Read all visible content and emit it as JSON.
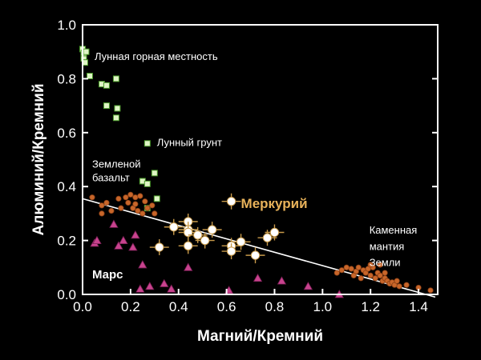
{
  "chart_data": {
    "type": "scatter",
    "title": "",
    "xlabel": "Магний/Кремний",
    "ylabel": "Алюминий/Кремний",
    "xlim": [
      0,
      1.48
    ],
    "ylim": [
      0,
      1.0
    ],
    "xticks": [
      "0.0",
      "0.2",
      "0.4",
      "0.6",
      "0.8",
      "1.0",
      "1.2",
      "1.4"
    ],
    "xtick_values": [
      0,
      0.2,
      0.4,
      0.6,
      0.8,
      1.0,
      1.2,
      1.4
    ],
    "yticks": [
      "0.0",
      "0.2",
      "0.4",
      "0.6",
      "0.8",
      "1.0"
    ],
    "ytick_values": [
      0,
      0.2,
      0.4,
      0.6,
      0.8,
      1.0
    ],
    "grid": false,
    "trend_line": {
      "x": [
        0.0,
        1.47
      ],
      "y": [
        0.355,
        -0.01
      ],
      "color": "#ffffff"
    },
    "annotations": [
      {
        "text": "Лунная горная местность",
        "x": 0.05,
        "y": 0.87,
        "style": "annot"
      },
      {
        "text": "Лунный грунт",
        "x": 0.31,
        "y": 0.55,
        "style": "annot"
      },
      {
        "text": "Земленой",
        "x": 0.04,
        "y": 0.47,
        "style": "annot"
      },
      {
        "text": "базальт",
        "x": 0.04,
        "y": 0.42,
        "style": "annot"
      },
      {
        "text": "Меркурий",
        "x": 0.66,
        "y": 0.32,
        "style": "annot-mercury"
      },
      {
        "text": "Марс",
        "x": 0.04,
        "y": 0.06,
        "style": "annot-bold"
      },
      {
        "text": "Каменная",
        "x": 1.195,
        "y": 0.225,
        "style": "annot"
      },
      {
        "text": "мантия",
        "x": 1.195,
        "y": 0.165,
        "style": "annot"
      },
      {
        "text": "Земли",
        "x": 1.195,
        "y": 0.105,
        "style": "annot"
      }
    ],
    "series": [
      {
        "marker": "square",
        "color": "#dff5c5",
        "edge": "#4a9a2a",
        "points": [
          [
            0.0,
            0.91
          ],
          [
            0.005,
            0.875
          ],
          [
            0.01,
            0.86
          ],
          [
            0.005,
            0.895
          ],
          [
            0.015,
            0.9
          ],
          [
            0.03,
            0.81
          ],
          [
            0.08,
            0.78
          ],
          [
            0.1,
            0.775
          ],
          [
            0.14,
            0.8
          ],
          [
            0.1,
            0.7
          ],
          [
            0.145,
            0.69
          ],
          [
            0.14,
            0.655
          ],
          [
            0.27,
            0.56
          ],
          [
            0.3,
            0.45
          ],
          [
            0.25,
            0.42
          ],
          [
            0.27,
            0.41
          ],
          [
            0.31,
            0.355
          ],
          [
            0.27,
            0.32
          ]
        ]
      },
      {
        "marker": "circle",
        "color": "#c8662a",
        "edge": "#8a3f15",
        "points": [
          [
            0.04,
            0.36
          ],
          [
            0.08,
            0.33
          ],
          [
            0.12,
            0.31
          ],
          [
            0.1,
            0.34
          ],
          [
            0.15,
            0.355
          ],
          [
            0.18,
            0.36
          ],
          [
            0.2,
            0.37
          ],
          [
            0.22,
            0.36
          ],
          [
            0.24,
            0.365
          ],
          [
            0.26,
            0.345
          ],
          [
            0.19,
            0.34
          ],
          [
            0.21,
            0.32
          ],
          [
            0.23,
            0.31
          ],
          [
            0.25,
            0.3
          ],
          [
            0.27,
            0.32
          ],
          [
            0.16,
            0.32
          ],
          [
            0.22,
            0.335
          ],
          [
            0.3,
            0.3
          ],
          [
            0.08,
            0.3
          ],
          [
            0.29,
            0.33
          ],
          [
            1.06,
            0.08
          ],
          [
            1.08,
            0.09
          ],
          [
            1.1,
            0.1
          ],
          [
            1.12,
            0.095
          ],
          [
            1.14,
            0.085
          ],
          [
            1.15,
            0.1
          ],
          [
            1.17,
            0.09
          ],
          [
            1.18,
            0.08
          ],
          [
            1.19,
            0.095
          ],
          [
            1.2,
            0.07
          ],
          [
            1.21,
            0.1
          ],
          [
            1.22,
            0.06
          ],
          [
            1.23,
            0.08
          ],
          [
            1.24,
            0.07
          ],
          [
            1.25,
            0.05
          ],
          [
            1.26,
            0.06
          ],
          [
            1.27,
            0.05
          ],
          [
            1.28,
            0.04
          ],
          [
            1.29,
            0.045
          ],
          [
            1.3,
            0.035
          ],
          [
            1.32,
            0.03
          ],
          [
            1.35,
            0.035
          ],
          [
            1.4,
            0.025
          ],
          [
            1.45,
            0.015
          ],
          [
            1.16,
            0.06
          ],
          [
            1.2,
            0.11
          ],
          [
            1.24,
            0.11
          ],
          [
            1.13,
            0.07
          ],
          [
            1.26,
            0.08
          ],
          [
            1.31,
            0.05
          ]
        ]
      },
      {
        "marker": "triangle",
        "color": "#c8438e",
        "edge": "#7a1f55",
        "points": [
          [
            0.05,
            0.19
          ],
          [
            0.06,
            0.2
          ],
          [
            0.13,
            0.26
          ],
          [
            0.15,
            0.18
          ],
          [
            0.17,
            0.2
          ],
          [
            0.21,
            0.175
          ],
          [
            0.22,
            0.22
          ],
          [
            0.25,
            0.11
          ],
          [
            0.24,
            0.02
          ],
          [
            0.28,
            0.03
          ],
          [
            0.34,
            0.04
          ],
          [
            0.37,
            0.02
          ],
          [
            0.44,
            0.1
          ],
          [
            0.61,
            0.015
          ],
          [
            0.73,
            0.06
          ],
          [
            0.83,
            0.05
          ],
          [
            0.94,
            0.03
          ],
          [
            1.07,
            0.0
          ]
        ]
      },
      {
        "marker": "mercury",
        "color": "#ffffff",
        "edge": "#c89a4a",
        "points": [
          [
            0.62,
            0.345
          ],
          [
            0.38,
            0.25
          ],
          [
            0.44,
            0.27
          ],
          [
            0.44,
            0.24
          ],
          [
            0.44,
            0.23
          ],
          [
            0.48,
            0.22
          ],
          [
            0.44,
            0.18
          ],
          [
            0.51,
            0.2
          ],
          [
            0.62,
            0.18
          ],
          [
            0.62,
            0.16
          ],
          [
            0.72,
            0.145
          ],
          [
            0.77,
            0.21
          ],
          [
            0.8,
            0.23
          ],
          [
            0.66,
            0.195
          ],
          [
            0.32,
            0.175
          ],
          [
            0.54,
            0.24
          ]
        ]
      }
    ]
  }
}
